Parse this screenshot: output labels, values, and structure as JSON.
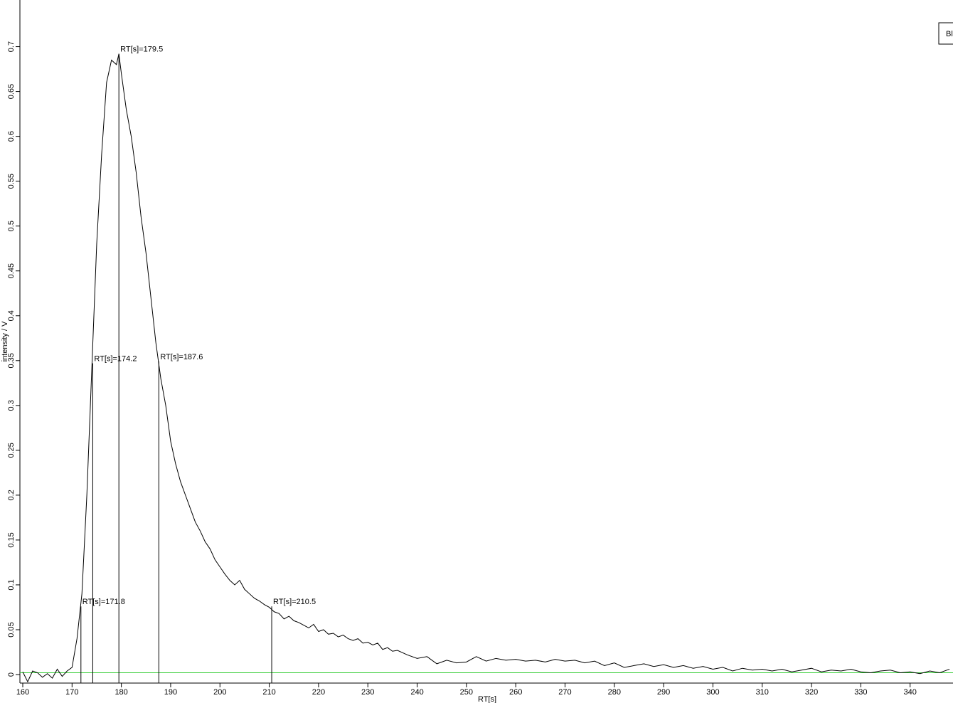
{
  "chart_data": {
    "type": "line",
    "x_label": "RT[s]",
    "y_label": "intensity / V",
    "x": [
      160,
      161,
      162,
      163,
      164,
      165,
      166,
      167,
      168,
      169,
      170,
      171,
      172,
      173,
      174,
      175,
      176,
      177,
      178,
      179,
      179.5,
      180,
      181,
      182,
      183,
      184,
      185,
      186,
      187,
      188,
      189,
      190,
      191,
      192,
      193,
      194,
      195,
      196,
      197,
      198,
      199,
      200,
      201,
      202,
      203,
      204,
      205,
      206,
      207,
      208,
      209,
      210,
      211,
      212,
      213,
      214,
      215,
      216,
      217,
      218,
      219,
      220,
      221,
      222,
      223,
      224,
      225,
      226,
      227,
      228,
      229,
      230,
      231,
      232,
      233,
      234,
      235,
      236,
      238,
      240,
      242,
      244,
      246,
      248,
      250,
      252,
      254,
      256,
      258,
      260,
      262,
      264,
      266,
      268,
      270,
      272,
      274,
      276,
      278,
      280,
      282,
      284,
      286,
      288,
      290,
      292,
      294,
      296,
      298,
      300,
      302,
      304,
      306,
      308,
      310,
      312,
      314,
      316,
      318,
      320,
      322,
      324,
      326,
      328,
      330,
      332,
      334,
      336,
      338,
      340,
      342,
      344,
      346,
      348
    ],
    "series": [
      {
        "name": "Bl",
        "color": "#000000",
        "values": [
          0.003,
          -0.008,
          0.004,
          0.002,
          -0.003,
          0.001,
          -0.004,
          0.006,
          -0.002,
          0.004,
          0.008,
          0.04,
          0.09,
          0.2,
          0.34,
          0.48,
          0.58,
          0.66,
          0.685,
          0.68,
          0.692,
          0.67,
          0.63,
          0.6,
          0.56,
          0.51,
          0.47,
          0.42,
          0.37,
          0.33,
          0.3,
          0.26,
          0.235,
          0.215,
          0.2,
          0.185,
          0.17,
          0.16,
          0.148,
          0.14,
          0.128,
          0.12,
          0.112,
          0.105,
          0.1,
          0.105,
          0.095,
          0.09,
          0.085,
          0.082,
          0.078,
          0.075,
          0.07,
          0.068,
          0.062,
          0.065,
          0.06,
          0.058,
          0.055,
          0.052,
          0.056,
          0.048,
          0.05,
          0.045,
          0.046,
          0.042,
          0.044,
          0.04,
          0.038,
          0.04,
          0.035,
          0.036,
          0.033,
          0.035,
          0.028,
          0.03,
          0.026,
          0.027,
          0.022,
          0.018,
          0.02,
          0.012,
          0.016,
          0.013,
          0.014,
          0.02,
          0.015,
          0.018,
          0.016,
          0.017,
          0.015,
          0.016,
          0.014,
          0.017,
          0.015,
          0.016,
          0.013,
          0.015,
          0.01,
          0.013,
          0.008,
          0.01,
          0.012,
          0.009,
          0.011,
          0.008,
          0.01,
          0.007,
          0.009,
          0.006,
          0.008,
          0.004,
          0.007,
          0.005,
          0.006,
          0.004,
          0.006,
          0.003,
          0.005,
          0.007,
          0.003,
          0.005,
          0.004,
          0.006,
          0.003,
          0.002,
          0.004,
          0.005,
          0.002,
          0.003,
          0.001,
          0.004,
          0.002,
          0.006
        ]
      }
    ],
    "annotations": [
      {
        "x": 171.8,
        "y": 0.076,
        "label": "RT[s]=171.8"
      },
      {
        "x": 174.2,
        "y": 0.347,
        "label": "RT[s]=174.2"
      },
      {
        "x": 179.5,
        "y": 0.692,
        "label": "RT[s]=179.5"
      },
      {
        "x": 187.6,
        "y": 0.349,
        "label": "RT[s]=187.6"
      },
      {
        "x": 210.5,
        "y": 0.076,
        "label": "RT[s]=210.5"
      }
    ],
    "baseline": {
      "value": 0.002,
      "color": "#33cc33"
    },
    "xlim": [
      160,
      348.7
    ],
    "ylim": [
      -0.0095,
      0.752
    ],
    "xticks": [
      160,
      170,
      180,
      190,
      200,
      210,
      220,
      230,
      240,
      250,
      260,
      270,
      280,
      290,
      300,
      310,
      320,
      330,
      340
    ],
    "yticks": [
      0,
      0.05,
      0.1,
      0.15,
      0.2,
      0.25,
      0.3,
      0.35,
      0.4,
      0.45,
      0.5,
      0.55,
      0.6,
      0.65,
      0.7
    ]
  }
}
